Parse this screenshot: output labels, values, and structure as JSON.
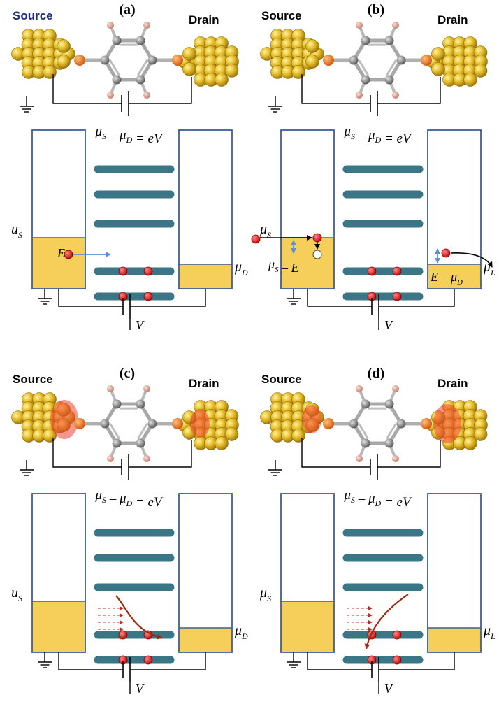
{
  "colors": {
    "gold": "#e8c030",
    "gold_dark": "#b08810",
    "fermi_fill": "#f6cf5a",
    "box_stroke": "#3a5fa0",
    "level": "#3b7687",
    "electron": "#e02020",
    "linker": "#f07a1e",
    "carbon": "#8a8a8a",
    "hydrogen": "#e8a898",
    "arrow_blue": "#5b8fd0",
    "trajectory": "#9a2a10",
    "dashed": "#c03020",
    "source_color": "#1f2f7a",
    "wire": "#000000"
  },
  "panels": [
    {
      "id": "a",
      "tag": "(a)",
      "source_label": "Source",
      "drain_label": "Drain",
      "bias_label": "μS – μD = eV",
      "mu_s_label": "uS",
      "mu_d_label": "μD",
      "voltage_label": "V",
      "energy_label": "E",
      "hole_label": "",
      "drain_energy_label": "",
      "source_blue": true,
      "variant": "a"
    },
    {
      "id": "b",
      "tag": "(b)",
      "source_label": "Source",
      "drain_label": "Drain",
      "bias_label": "μS – μD = eV",
      "mu_s_label": "μS",
      "mu_d_label": "μL",
      "voltage_label": "V",
      "energy_label": "",
      "hole_label": "μS – E",
      "drain_energy_label": "E – μD",
      "source_blue": false,
      "variant": "b"
    },
    {
      "id": "c",
      "tag": "(c)",
      "source_label": "Source",
      "drain_label": "Drain",
      "bias_label": "μS – μD = eV",
      "mu_s_label": "uS",
      "mu_d_label": "μD",
      "voltage_label": "V",
      "energy_label": "",
      "hole_label": "",
      "drain_energy_label": "",
      "source_blue": false,
      "variant": "c"
    },
    {
      "id": "d",
      "tag": "(d)",
      "source_label": "Source",
      "drain_label": "Drain",
      "bias_label": "μS – μD = eV",
      "mu_s_label": "μS",
      "mu_d_label": "μL",
      "voltage_label": "V",
      "energy_label": "",
      "hole_label": "",
      "drain_energy_label": "",
      "source_blue": false,
      "variant": "d"
    }
  ]
}
